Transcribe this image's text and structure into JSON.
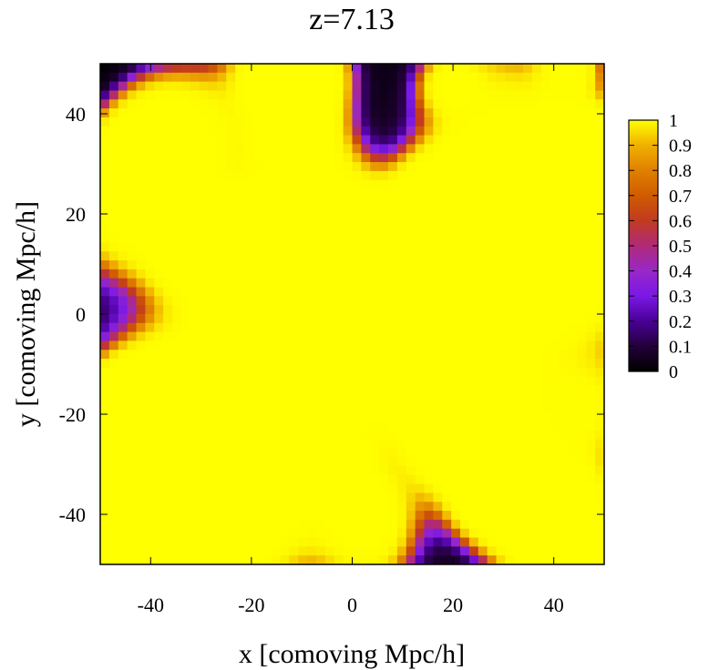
{
  "chart_data": {
    "type": "heatmap",
    "title": "z=7.13",
    "xlabel": "x [comoving Mpc/h]",
    "ylabel": "y [comoving Mpc/h]",
    "xlim": [
      -50,
      50
    ],
    "ylim": [
      -50,
      50
    ],
    "xticks": [
      "-40",
      "-20",
      "0",
      "20",
      "40"
    ],
    "xtick_values": [
      -40,
      -20,
      0,
      20,
      40
    ],
    "yticks": [
      "40",
      "20",
      "0",
      "-20",
      "-40"
    ],
    "ytick_values": [
      40,
      20,
      0,
      -20,
      -40
    ],
    "colorbar": {
      "range": [
        0,
        1
      ],
      "ticks": [
        "1",
        "0.9",
        "0.8",
        "0.7",
        "0.6",
        "0.5",
        "0.4",
        "0.3",
        "0.2",
        "0.1",
        "0"
      ],
      "tick_values": [
        1,
        0.9,
        0.8,
        0.7,
        0.6,
        0.5,
        0.4,
        0.3,
        0.2,
        0.1,
        0
      ],
      "colormap": [
        "#000000",
        "#23003a",
        "#4a0095",
        "#7a18e6",
        "#9828c8",
        "#b02a7a",
        "#c23a20",
        "#cf5c00",
        "#e08000",
        "#f0b000",
        "#ffff00"
      ]
    },
    "grid": false,
    "field_description": "ionized fraction map; yellow regions ~1, black regions ~0"
  }
}
